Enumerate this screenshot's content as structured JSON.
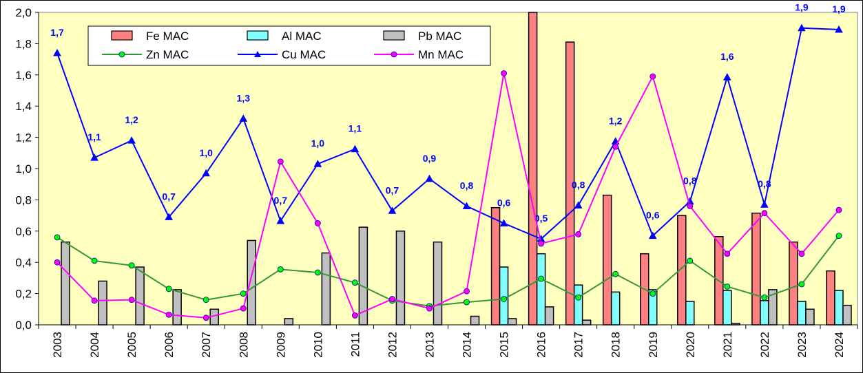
{
  "chart_data": {
    "type": "bar",
    "title": "",
    "xlabel": "",
    "ylabel": "",
    "ylim": [
      0,
      2.0
    ],
    "yticks": [
      "0,0",
      "0,2",
      "0,4",
      "0,6",
      "0,8",
      "1,0",
      "1,2",
      "1,4",
      "1,6",
      "1,8",
      "2,0"
    ],
    "grid": false,
    "legend_placement": "top-left",
    "categories": [
      "2003",
      "2004",
      "2005",
      "2006",
      "2007",
      "2008",
      "2009",
      "2010",
      "2011",
      "2012",
      "2013",
      "2014",
      "2015",
      "2016",
      "2017",
      "2018",
      "2019",
      "2020",
      "2021",
      "2022",
      "2023",
      "2024"
    ],
    "series": [
      {
        "name": "Fe MAC",
        "kind": "bar",
        "color": "#ff8080",
        "values": [
          null,
          null,
          null,
          null,
          null,
          null,
          null,
          null,
          null,
          null,
          null,
          null,
          0.75,
          2.1,
          1.81,
          0.83,
          0.455,
          0.7,
          0.565,
          0.715,
          0.53,
          0.345
        ]
      },
      {
        "name": "Al MAC",
        "kind": "bar",
        "color": "#80ffff",
        "values": [
          null,
          null,
          null,
          null,
          null,
          null,
          null,
          null,
          null,
          null,
          null,
          null,
          0.37,
          0.455,
          0.255,
          0.21,
          0.225,
          0.15,
          0.22,
          0.155,
          0.15,
          0.22
        ]
      },
      {
        "name": "Pb MAC",
        "kind": "bar",
        "color": "#c0c0c0",
        "values": [
          0.53,
          0.28,
          0.37,
          0.225,
          0.1,
          0.54,
          0.04,
          0.46,
          0.625,
          0.6,
          0.53,
          0.055,
          0.04,
          0.115,
          0.03,
          null,
          null,
          null,
          0.01,
          0.225,
          0.1,
          0.125
        ]
      },
      {
        "name": "Zn MAC",
        "kind": "line",
        "color": "#339933",
        "marker": "circle",
        "marker_color": "#00ff00",
        "values": [
          0.56,
          0.41,
          0.38,
          0.23,
          0.16,
          0.2,
          0.355,
          0.335,
          0.27,
          0.155,
          0.12,
          0.145,
          0.165,
          0.295,
          0.175,
          0.325,
          0.2,
          0.41,
          0.245,
          0.175,
          0.26,
          0.57
        ]
      },
      {
        "name": "Cu MAC",
        "kind": "line",
        "color": "#0000ff",
        "marker": "triangle",
        "marker_color": "#0000ff",
        "values": [
          1.74,
          1.07,
          1.18,
          0.69,
          0.97,
          1.32,
          0.665,
          1.03,
          1.125,
          0.73,
          0.935,
          0.76,
          0.65,
          0.55,
          0.765,
          1.175,
          0.57,
          0.79,
          1.585,
          0.77,
          1.9,
          1.89
        ],
        "data_labels": [
          "1,7",
          "1,1",
          "1,2",
          "0,7",
          "1,0",
          "1,3",
          "0,7",
          "1,0",
          "1,1",
          "0,7",
          "0,9",
          "0,8",
          "0,6",
          "0,5",
          "0,8",
          "1,2",
          "0,6",
          "0,8",
          "1,6",
          "0,8",
          "1,9",
          "1,9"
        ]
      },
      {
        "name": "Mn MAC",
        "kind": "line",
        "color": "#ff00ff",
        "marker": "circle",
        "marker_color": "#ff00ff",
        "values": [
          0.4,
          0.155,
          0.16,
          0.065,
          0.045,
          0.105,
          1.045,
          0.65,
          0.06,
          0.165,
          0.105,
          0.215,
          1.61,
          0.52,
          0.58,
          1.14,
          1.59,
          0.76,
          0.455,
          0.715,
          0.455,
          0.735
        ]
      }
    ],
    "plot_background": "#ffffc0"
  }
}
